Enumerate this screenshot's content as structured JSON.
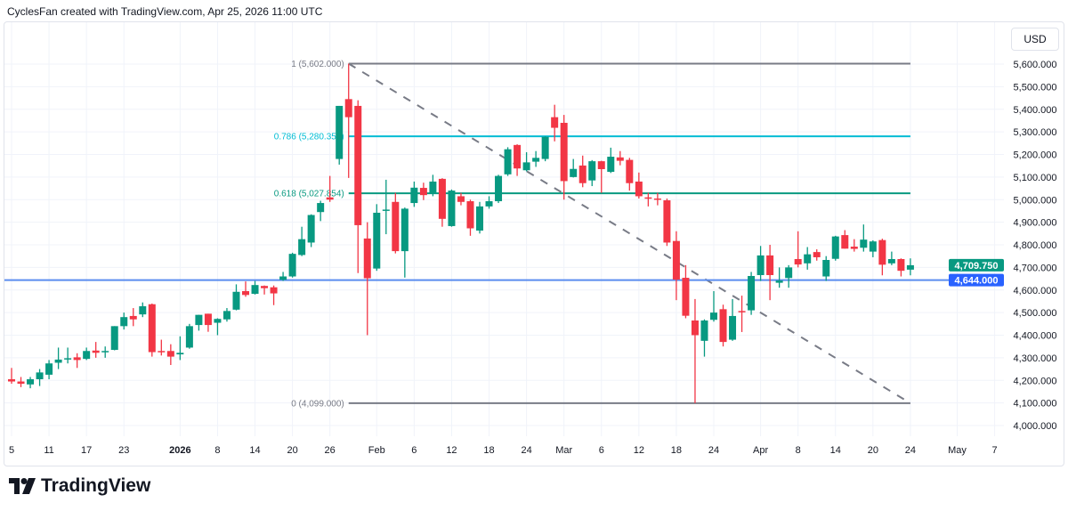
{
  "header": {
    "attribution": "CyclesFan created with TradingView.com, Apr 25, 2026 11:00 UTC"
  },
  "currency_button": "USD",
  "footer": {
    "logo_text": "TradingView"
  },
  "colors": {
    "up": "#089981",
    "down": "#f23645",
    "fib_0_1": "#787b86",
    "fib_0786": "#00bcd4",
    "fib_0618": "#089981",
    "hline": "#5b8def",
    "trend": "#787b86"
  },
  "chart_data": {
    "type": "candlestick",
    "ylim": [
      3950,
      5700
    ],
    "grid": true,
    "y_ticks": [
      "4,000.000",
      "4,100.000",
      "4,200.000",
      "4,300.000",
      "4,400.000",
      "4,500.000",
      "4,600.000",
      "4,700.000",
      "4,800.000",
      "4,900.000",
      "5,000.000",
      "5,100.000",
      "5,200.000",
      "5,300.000",
      "5,400.000",
      "5,500.000",
      "5,600.000"
    ],
    "y_tick_values": [
      4000,
      4100,
      4200,
      4300,
      4400,
      4500,
      4600,
      4700,
      4800,
      4900,
      5000,
      5100,
      5200,
      5300,
      5400,
      5500,
      5600
    ],
    "x_ticks": [
      {
        "label": "5",
        "bar": 0
      },
      {
        "label": "11",
        "bar": 4
      },
      {
        "label": "17",
        "bar": 8
      },
      {
        "label": "23",
        "bar": 12
      },
      {
        "label": "2026",
        "bar": 18,
        "bold": true
      },
      {
        "label": "8",
        "bar": 22
      },
      {
        "label": "14",
        "bar": 26
      },
      {
        "label": "20",
        "bar": 30
      },
      {
        "label": "26",
        "bar": 34
      },
      {
        "label": "Feb",
        "bar": 39
      },
      {
        "label": "6",
        "bar": 43
      },
      {
        "label": "12",
        "bar": 47
      },
      {
        "label": "18",
        "bar": 51
      },
      {
        "label": "24",
        "bar": 55
      },
      {
        "label": "Mar",
        "bar": 59
      },
      {
        "label": "6",
        "bar": 63
      },
      {
        "label": "12",
        "bar": 67
      },
      {
        "label": "18",
        "bar": 71
      },
      {
        "label": "24",
        "bar": 75
      },
      {
        "label": "Apr",
        "bar": 80
      },
      {
        "label": "8",
        "bar": 84
      },
      {
        "label": "14",
        "bar": 88
      },
      {
        "label": "20",
        "bar": 92
      },
      {
        "label": "24",
        "bar": 96
      },
      {
        "label": "May",
        "bar": 101
      },
      {
        "label": "7",
        "bar": 105
      }
    ],
    "ohlc": [
      [
        4205,
        4255,
        4185,
        4195
      ],
      [
        4195,
        4215,
        4170,
        4185
      ],
      [
        4182,
        4215,
        4165,
        4205
      ],
      [
        4205,
        4250,
        4175,
        4235
      ],
      [
        4225,
        4290,
        4205,
        4275
      ],
      [
        4278,
        4345,
        4250,
        4292
      ],
      [
        4295,
        4345,
        4275,
        4298
      ],
      [
        4302,
        4320,
        4255,
        4290
      ],
      [
        4295,
        4345,
        4290,
        4330
      ],
      [
        4332,
        4370,
        4300,
        4322
      ],
      [
        4325,
        4350,
        4300,
        4330
      ],
      [
        4335,
        4440,
        4333,
        4440
      ],
      [
        4440,
        4500,
        4425,
        4480
      ],
      [
        4485,
        4520,
        4440,
        4470
      ],
      [
        4492,
        4545,
        4480,
        4528
      ],
      [
        4537,
        4540,
        4305,
        4325
      ],
      [
        4330,
        4380,
        4310,
        4325
      ],
      [
        4330,
        4360,
        4268,
        4305
      ],
      [
        4315,
        4395,
        4290,
        4322
      ],
      [
        4345,
        4450,
        4340,
        4440
      ],
      [
        4445,
        4490,
        4420,
        4490
      ],
      [
        4495,
        4495,
        4415,
        4445
      ],
      [
        4455,
        4475,
        4400,
        4472
      ],
      [
        4470,
        4520,
        4460,
        4507
      ],
      [
        4513,
        4625,
        4510,
        4592
      ],
      [
        4595,
        4638,
        4570,
        4578
      ],
      [
        4583,
        4640,
        4580,
        4622
      ],
      [
        4618,
        4620,
        4580,
        4608
      ],
      [
        4612,
        4620,
        4533,
        4585
      ],
      [
        4645,
        4680,
        4640,
        4660
      ],
      [
        4660,
        4765,
        4655,
        4760
      ],
      [
        4755,
        4880,
        4750,
        4825
      ],
      [
        4810,
        4935,
        4790,
        4932
      ],
      [
        4945,
        4995,
        4905,
        4985
      ],
      [
        5010,
        5105,
        4990,
        5000
      ],
      [
        5180,
        5415,
        5155,
        5415
      ],
      [
        5445,
        5602,
        5096,
        5365
      ],
      [
        5415,
        5440,
        4675,
        4887
      ],
      [
        4828,
        4900,
        4400,
        4652
      ],
      [
        4695,
        4980,
        4685,
        4942
      ],
      [
        4952,
        5088,
        4847,
        4956
      ],
      [
        4990,
        5030,
        4762,
        4772
      ],
      [
        4772,
        4965,
        4655,
        4960
      ],
      [
        4985,
        5080,
        4968,
        5053
      ],
      [
        5052,
        5075,
        4998,
        5020
      ],
      [
        5025,
        5110,
        5015,
        5080
      ],
      [
        5092,
        5095,
        4880,
        4915
      ],
      [
        4883,
        5045,
        4880,
        5040
      ],
      [
        5015,
        5030,
        4975,
        4990
      ],
      [
        4993,
        5000,
        4840,
        4873
      ],
      [
        4863,
        4990,
        4850,
        4970
      ],
      [
        4970,
        5015,
        4960,
        4993
      ],
      [
        4993,
        5110,
        4985,
        5105
      ],
      [
        5112,
        5232,
        5105,
        5223
      ],
      [
        5242,
        5245,
        5105,
        5138
      ],
      [
        5130,
        5210,
        5125,
        5165
      ],
      [
        5168,
        5215,
        5145,
        5185
      ],
      [
        5180,
        5280,
        5170,
        5278
      ],
      [
        5365,
        5420,
        5258,
        5318
      ],
      [
        5340,
        5375,
        5000,
        5082
      ],
      [
        5100,
        5180,
        5098,
        5136
      ],
      [
        5151,
        5195,
        5055,
        5073
      ],
      [
        5085,
        5175,
        5060,
        5170
      ],
      [
        5170,
        5172,
        5030,
        5135
      ],
      [
        5123,
        5230,
        5118,
        5190
      ],
      [
        5187,
        5215,
        5152,
        5172
      ],
      [
        5176,
        5185,
        5040,
        5073
      ],
      [
        5080,
        5120,
        5005,
        5015
      ],
      [
        5010,
        5030,
        4970,
        5004
      ],
      [
        5005,
        5030,
        4975,
        5000
      ],
      [
        4997,
        5005,
        4795,
        4810
      ],
      [
        4817,
        4860,
        4555,
        4646
      ],
      [
        4654,
        4710,
        4475,
        4486
      ],
      [
        4465,
        4560,
        4099,
        4400
      ],
      [
        4375,
        4470,
        4305,
        4465
      ],
      [
        4468,
        4595,
        4460,
        4500
      ],
      [
        4515,
        4535,
        4350,
        4370
      ],
      [
        4380,
        4560,
        4375,
        4485
      ],
      [
        4507,
        4575,
        4414,
        4503
      ],
      [
        4510,
        4680,
        4490,
        4662
      ],
      [
        4666,
        4795,
        4640,
        4753
      ],
      [
        4753,
        4800,
        4555,
        4666
      ],
      [
        4632,
        4700,
        4610,
        4642
      ],
      [
        4653,
        4710,
        4610,
        4700
      ],
      [
        4737,
        4860,
        4700,
        4713
      ],
      [
        4718,
        4790,
        4690,
        4758
      ],
      [
        4768,
        4780,
        4730,
        4745
      ],
      [
        4660,
        4750,
        4640,
        4733
      ],
      [
        4738,
        4840,
        4730,
        4837
      ],
      [
        4843,
        4865,
        4783,
        4783
      ],
      [
        4792,
        4825,
        4770,
        4782
      ],
      [
        4787,
        4890,
        4770,
        4823
      ],
      [
        4770,
        4820,
        4745,
        4815
      ],
      [
        4821,
        4827,
        4665,
        4712
      ],
      [
        4718,
        4770,
        4710,
        4737
      ],
      [
        4737,
        4740,
        4660,
        4685
      ],
      [
        4690,
        4740,
        4665,
        4709.75
      ]
    ],
    "last_price": {
      "value": 4709.75,
      "label": "4,709.750"
    },
    "horizontal_line": {
      "value": 4644,
      "label": "4,644.000"
    },
    "fibonacci": {
      "from_bar": 36,
      "to_bar": 96,
      "levels": [
        {
          "ratio": 1,
          "value": 5602,
          "label": "1 (5,602.000)"
        },
        {
          "ratio": 0.786,
          "value": 5280.358,
          "label": "0.786 (5,280.358)"
        },
        {
          "ratio": 0.618,
          "value": 5027.854,
          "label": "0.618 (5,027.854)"
        },
        {
          "ratio": 0,
          "value": 4099,
          "label": "0 (4,099.000)"
        }
      ]
    },
    "trend_line": {
      "from": {
        "bar": 36,
        "value": 5602
      },
      "to": {
        "bar": 96,
        "value": 4099
      },
      "style": "dashed"
    }
  }
}
